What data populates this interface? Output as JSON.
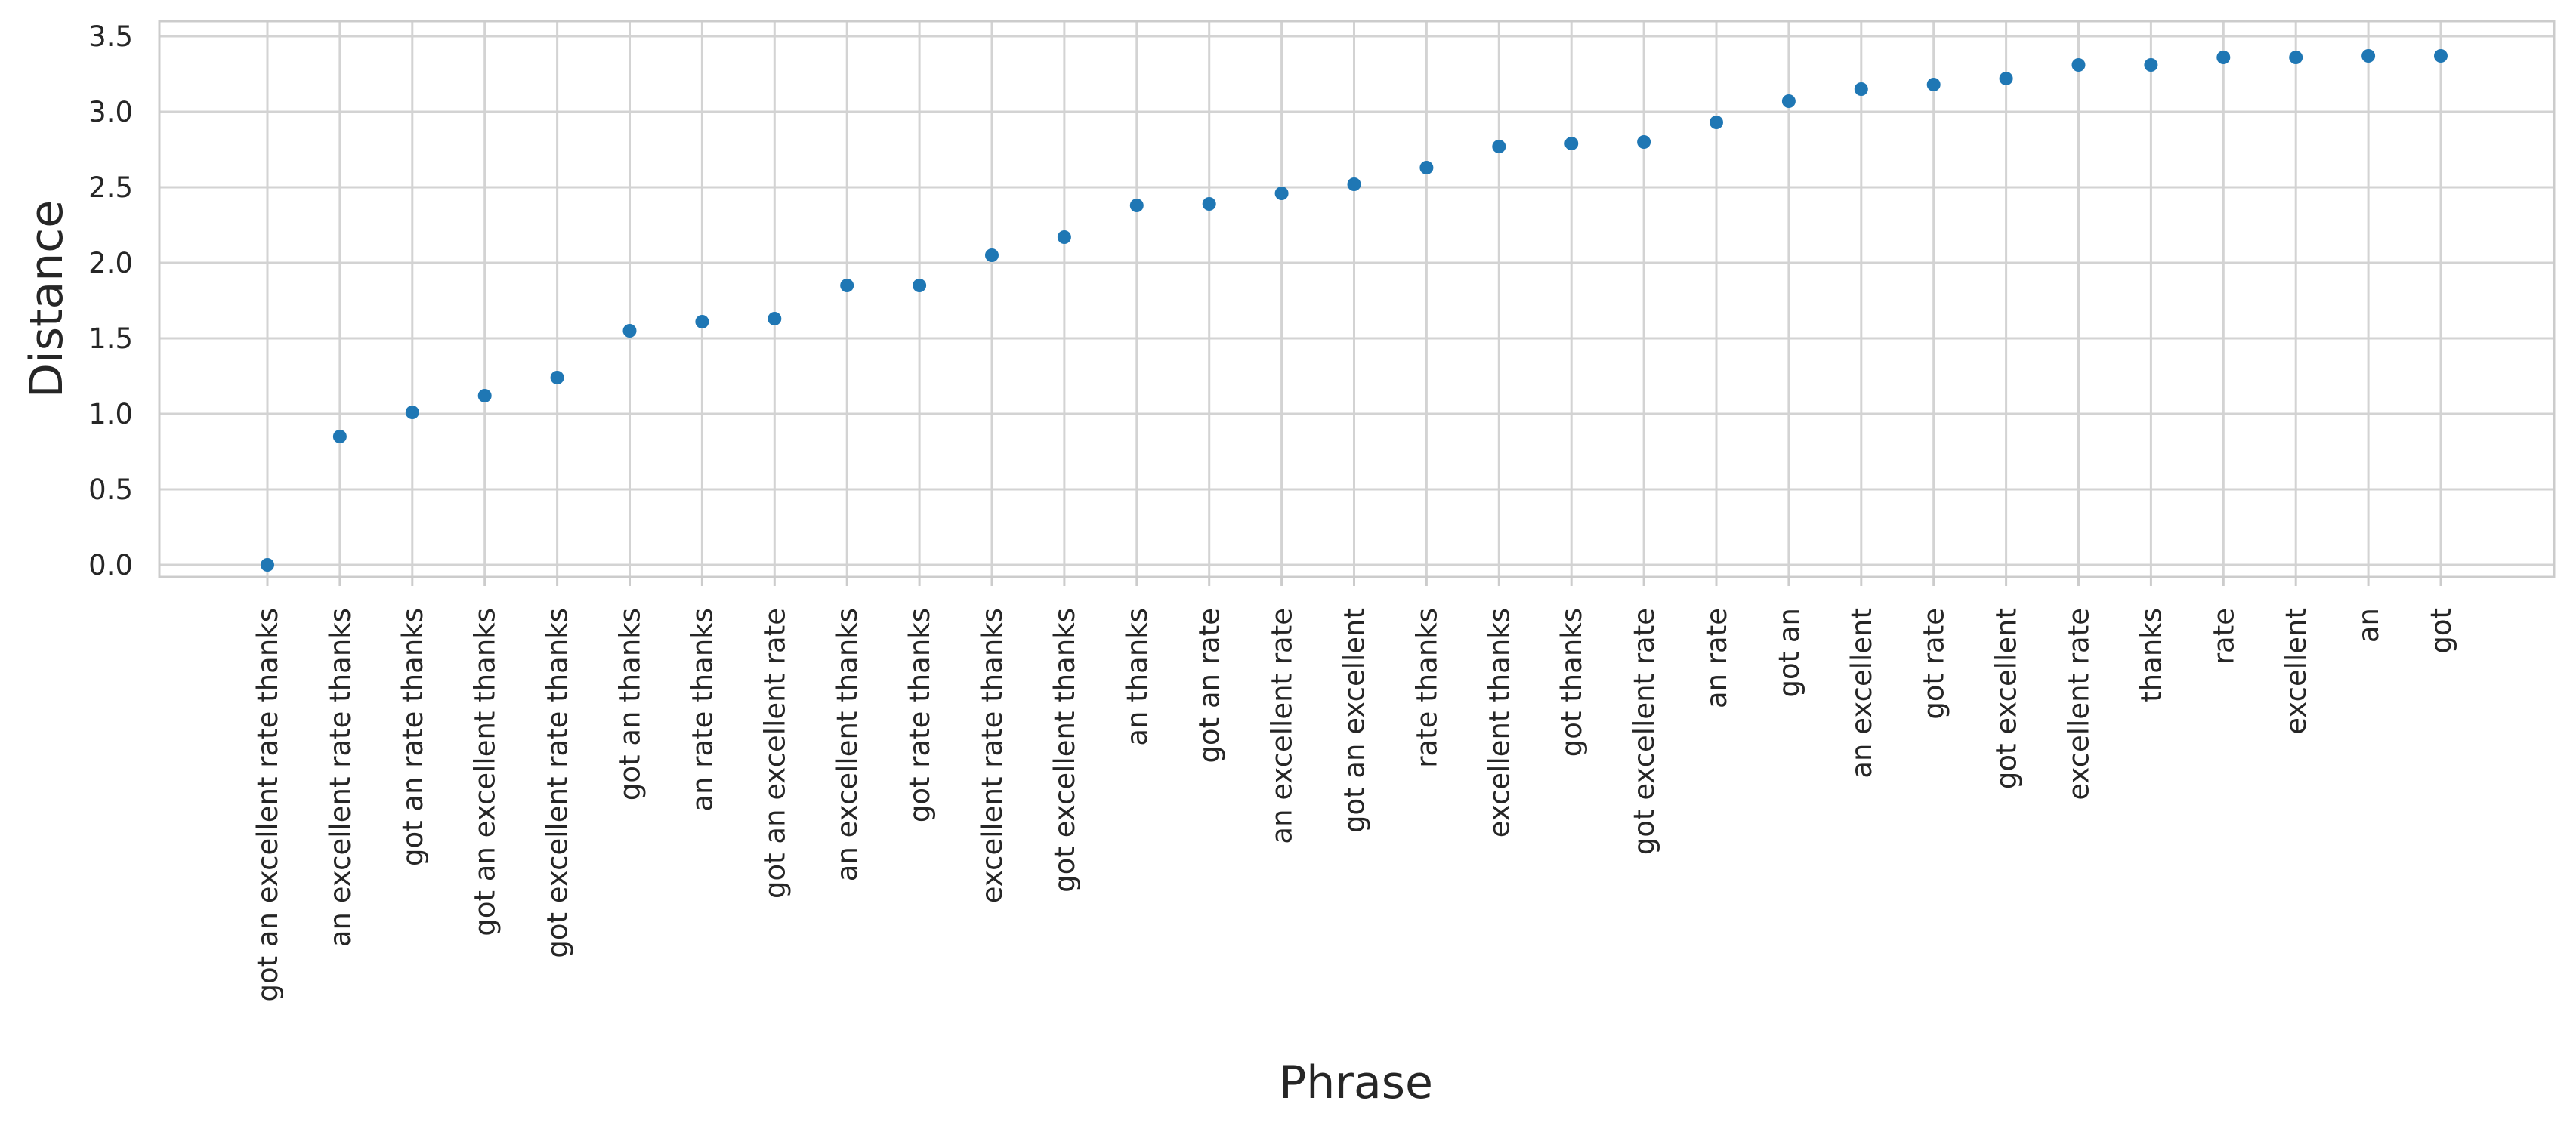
{
  "chart_data": {
    "type": "scatter",
    "title": "",
    "xlabel": "Phrase",
    "ylabel": "Distance",
    "ylim": [
      -0.08,
      3.6
    ],
    "y_ticks": [
      0.0,
      0.5,
      1.0,
      1.5,
      2.0,
      2.5,
      3.0,
      3.5
    ],
    "y_tick_labels": [
      "0.0",
      "0.5",
      "1.0",
      "1.5",
      "2.0",
      "2.5",
      "3.0",
      "3.5"
    ],
    "grid": true,
    "legend": "none",
    "point_color": "#1f77b4",
    "categories": [
      "got an excellent rate thanks",
      "an excellent rate thanks",
      "got an rate thanks",
      "got an excellent thanks",
      "got excellent rate thanks",
      "got an thanks",
      "an rate thanks",
      "got an excellent rate",
      "an excellent thanks",
      "got rate thanks",
      "excellent rate thanks",
      "got excellent thanks",
      "an thanks",
      "got an rate",
      "an excellent rate",
      "got an excellent",
      "rate thanks",
      "excellent thanks",
      "got thanks",
      "got excellent rate",
      "an rate",
      "got an",
      "an excellent",
      "got rate",
      "got excellent",
      "excellent rate",
      "thanks",
      "rate",
      "excellent",
      "an",
      "got"
    ],
    "values": [
      0.0,
      0.85,
      1.01,
      1.12,
      1.24,
      1.55,
      1.61,
      1.63,
      1.85,
      1.85,
      2.05,
      2.17,
      2.38,
      2.39,
      2.46,
      2.52,
      2.63,
      2.77,
      2.79,
      2.8,
      2.93,
      3.07,
      3.15,
      3.18,
      3.22,
      3.31,
      3.31,
      3.36,
      3.36,
      3.37,
      3.37
    ]
  }
}
